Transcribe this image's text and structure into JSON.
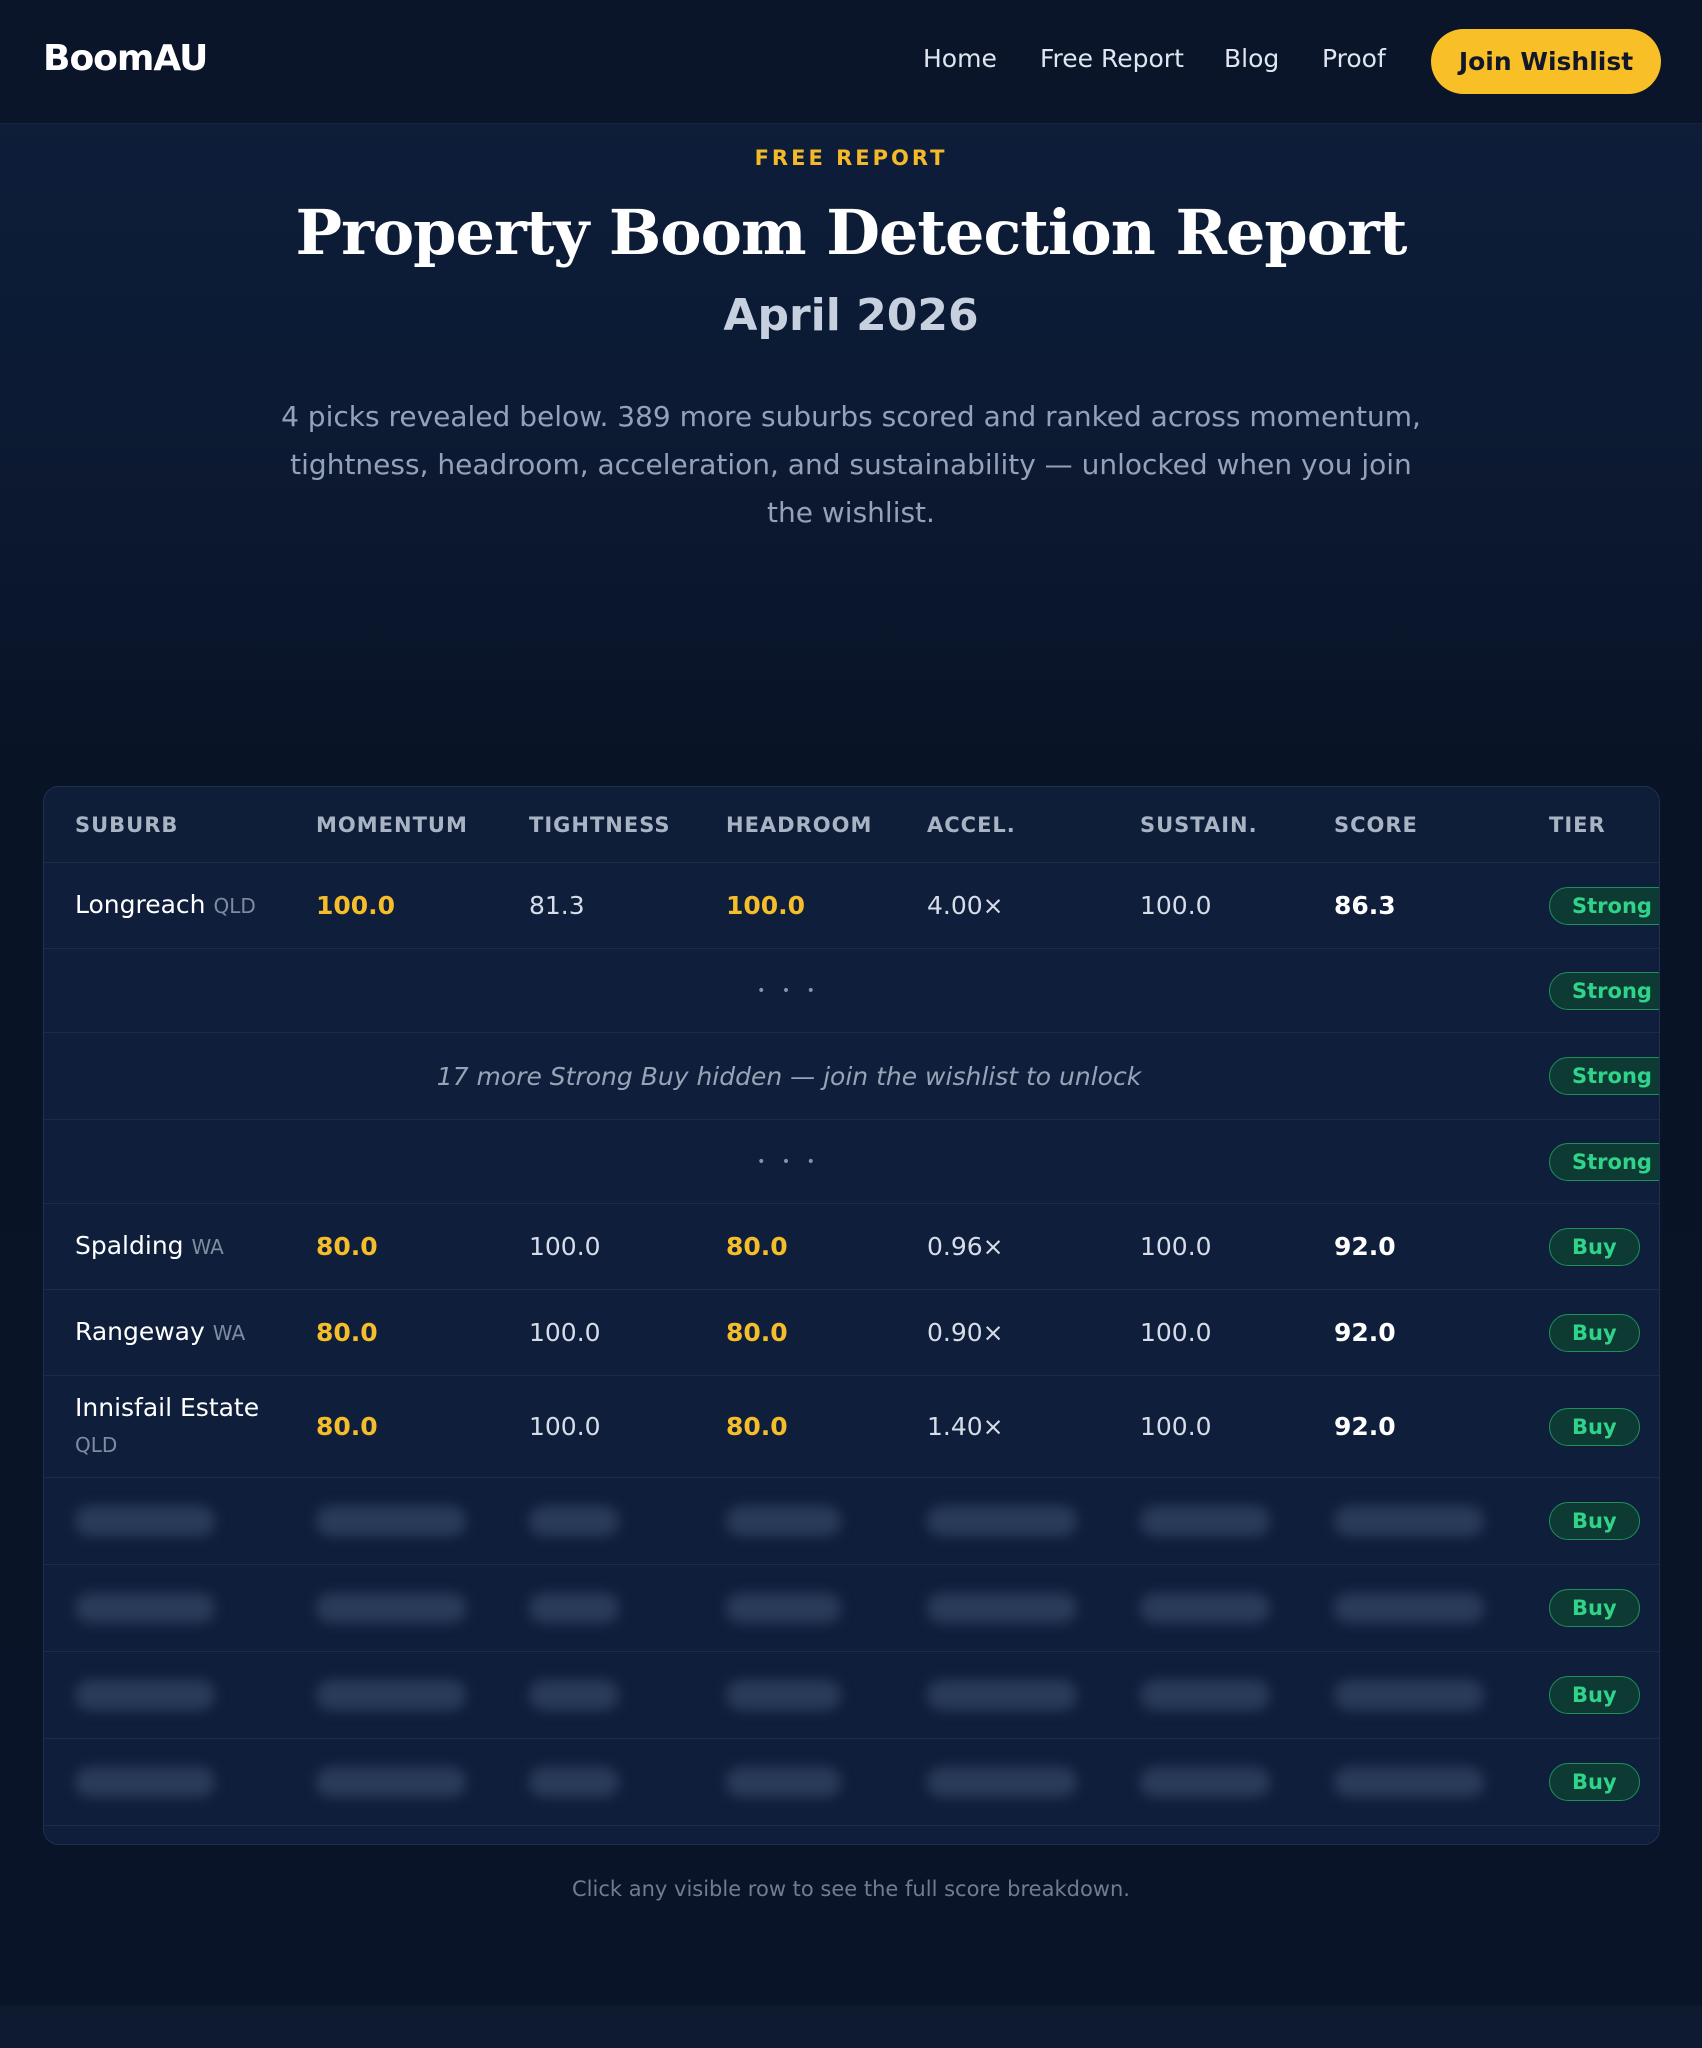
{
  "nav": {
    "brand": "BoomAU",
    "links": [
      "Home",
      "Free Report",
      "Blog",
      "Proof"
    ],
    "cta": "Join Wishlist"
  },
  "hero": {
    "eyebrow": "FREE REPORT",
    "title": "Property Boom Detection Report",
    "subtitle": "April 2026",
    "description": "4 picks revealed below. 389 more suburbs scored and ranked across momentum, tightness, headroom, acceleration, and sustainability — unlocked when you join the wishlist."
  },
  "table": {
    "headers": [
      "SUBURB",
      "MOMENTUM",
      "TIGHTNESS",
      "HEADROOM",
      "ACCEL.",
      "SUSTAIN.",
      "SCORE",
      "TIER"
    ],
    "rows": [
      {
        "suburb": "Longreach",
        "state": "QLD",
        "momentum": "100.0",
        "tightness": "81.3",
        "headroom": "100.0",
        "accel": "4.00×",
        "sustain": "100.0",
        "score": "86.3",
        "tier": "Strong Buy"
      },
      {
        "tier": "Strong Buy"
      },
      {
        "note": "17 more Strong Buy hidden — join the wishlist to unlock",
        "tier": "Strong Buy"
      },
      {
        "tier": "Strong Buy"
      },
      {
        "suburb": "Spalding",
        "state": "WA",
        "momentum": "80.0",
        "tightness": "100.0",
        "headroom": "80.0",
        "accel": "0.96×",
        "sustain": "100.0",
        "score": "92.0",
        "tier": "Buy"
      },
      {
        "suburb": "Rangeway",
        "state": "WA",
        "momentum": "80.0",
        "tightness": "100.0",
        "headroom": "80.0",
        "accel": "0.90×",
        "sustain": "100.0",
        "score": "92.0",
        "tier": "Buy"
      },
      {
        "suburb": "Innisfail Estate",
        "state": "QLD",
        "momentum": "80.0",
        "tightness": "100.0",
        "headroom": "80.0",
        "accel": "1.40×",
        "sustain": "100.0",
        "score": "92.0",
        "tier": "Buy"
      }
    ],
    "locked_rows": [
      {
        "tier": "Buy"
      },
      {
        "tier": "Buy"
      },
      {
        "tier": "Buy"
      },
      {
        "tier": "Buy"
      }
    ]
  },
  "footer_note": "Click any visible row to see the full score breakdown."
}
